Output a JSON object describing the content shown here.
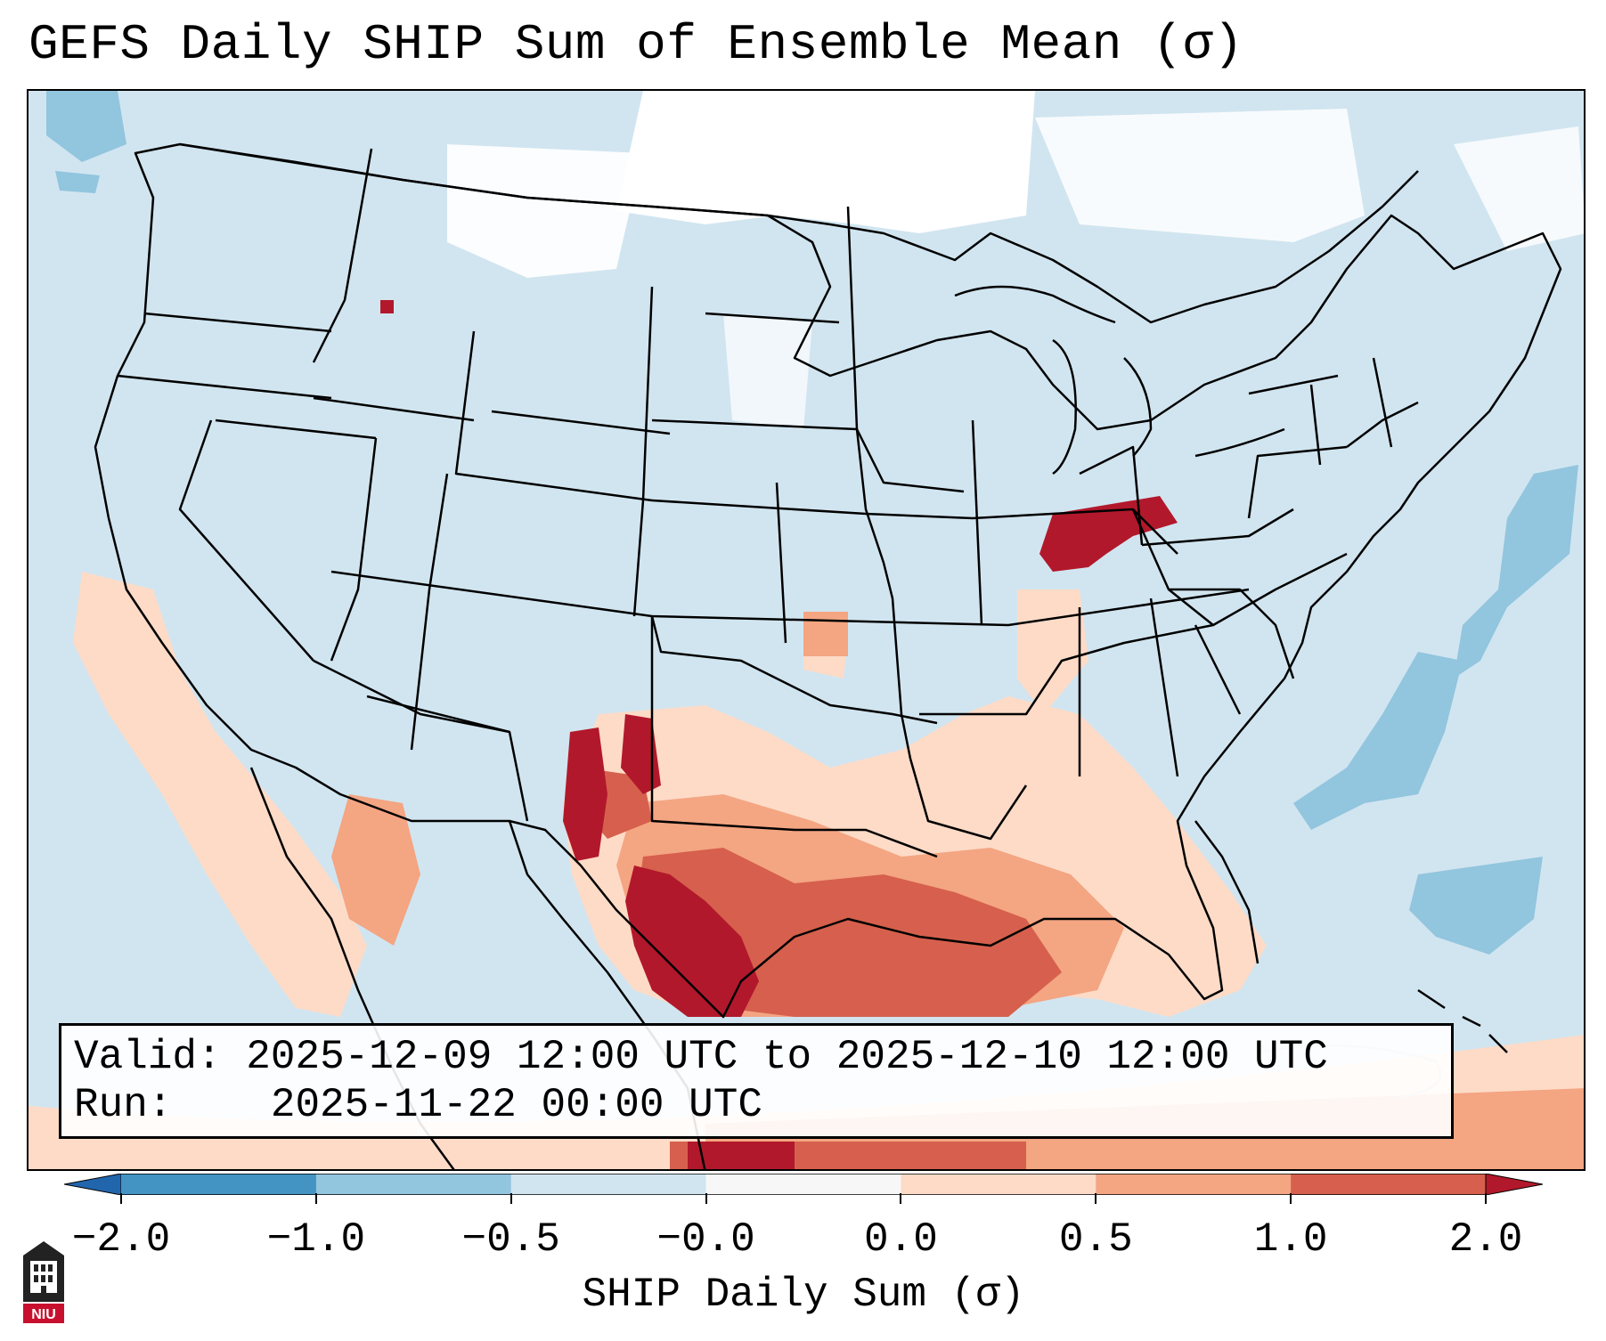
{
  "title": "GEFS Daily SHIP Sum of Ensemble Mean (σ)",
  "info": {
    "valid_label": "Valid:",
    "valid_value": "2025-12-09 12:00 UTC to 2025-12-10 12:00 UTC",
    "run_label": "Run:",
    "run_value": "2025-11-22 00:00 UTC"
  },
  "colorbar": {
    "label": "SHIP Daily Sum (σ)",
    "ticks": [
      "−2.0",
      "−1.0",
      "−0.5",
      "−0.0",
      "0.0",
      "0.5",
      "1.0",
      "2.0"
    ],
    "colors": [
      "#2166ac",
      "#4393c3",
      "#92c5de",
      "#d1e5f0",
      "#f7f7f7",
      "#fddbc7",
      "#f4a582",
      "#d6604d",
      "#b2182b"
    ],
    "extend": "both"
  },
  "map": {
    "region": "Contiguous United States",
    "background_class_color": "#d1e5f0",
    "neutral_color": "#ffffff"
  },
  "logo": {
    "text": "NIU"
  }
}
